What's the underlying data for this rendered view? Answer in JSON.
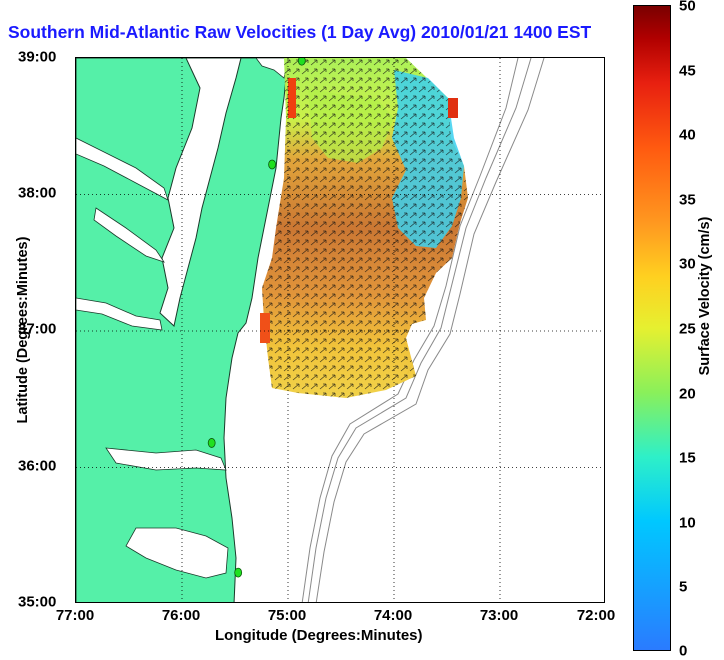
{
  "title": "Southern Mid-Atlantic Raw Velocities (1 Day Avg) 2010/01/21 1400 EST",
  "x_axis": {
    "label": "Longitude (Degrees:Minutes)",
    "ticks": [
      "77:00",
      "76:00",
      "75:00",
      "74:00",
      "73:00",
      "72:00"
    ]
  },
  "y_axis": {
    "label": "Latitude (Degrees:Minutes)",
    "ticks": [
      "39:00",
      "38:00",
      "37:00",
      "36:00",
      "35:00"
    ]
  },
  "colorbar": {
    "label": "Surface Velocity (cm/s)",
    "ticks": [
      "50",
      "45",
      "40",
      "35",
      "30",
      "25",
      "20",
      "15",
      "10",
      "5",
      "0"
    ],
    "range": [
      0,
      50
    ],
    "colormap": "jet"
  },
  "colors": {
    "land": "#55f0a8",
    "title": "#1a1aff",
    "coast_line": "#1a3a2a",
    "bathymetry": "#8a8a8a",
    "station": "#20e020"
  },
  "stations": [
    {
      "lon": -74.87,
      "lat": 38.98
    },
    {
      "lon": -75.15,
      "lat": 38.22
    },
    {
      "lon": -75.72,
      "lat": 36.18
    },
    {
      "lon": -75.47,
      "lat": 35.23
    }
  ],
  "extent": {
    "lon": [
      -77,
      -72
    ],
    "lat": [
      35,
      39
    ]
  }
}
